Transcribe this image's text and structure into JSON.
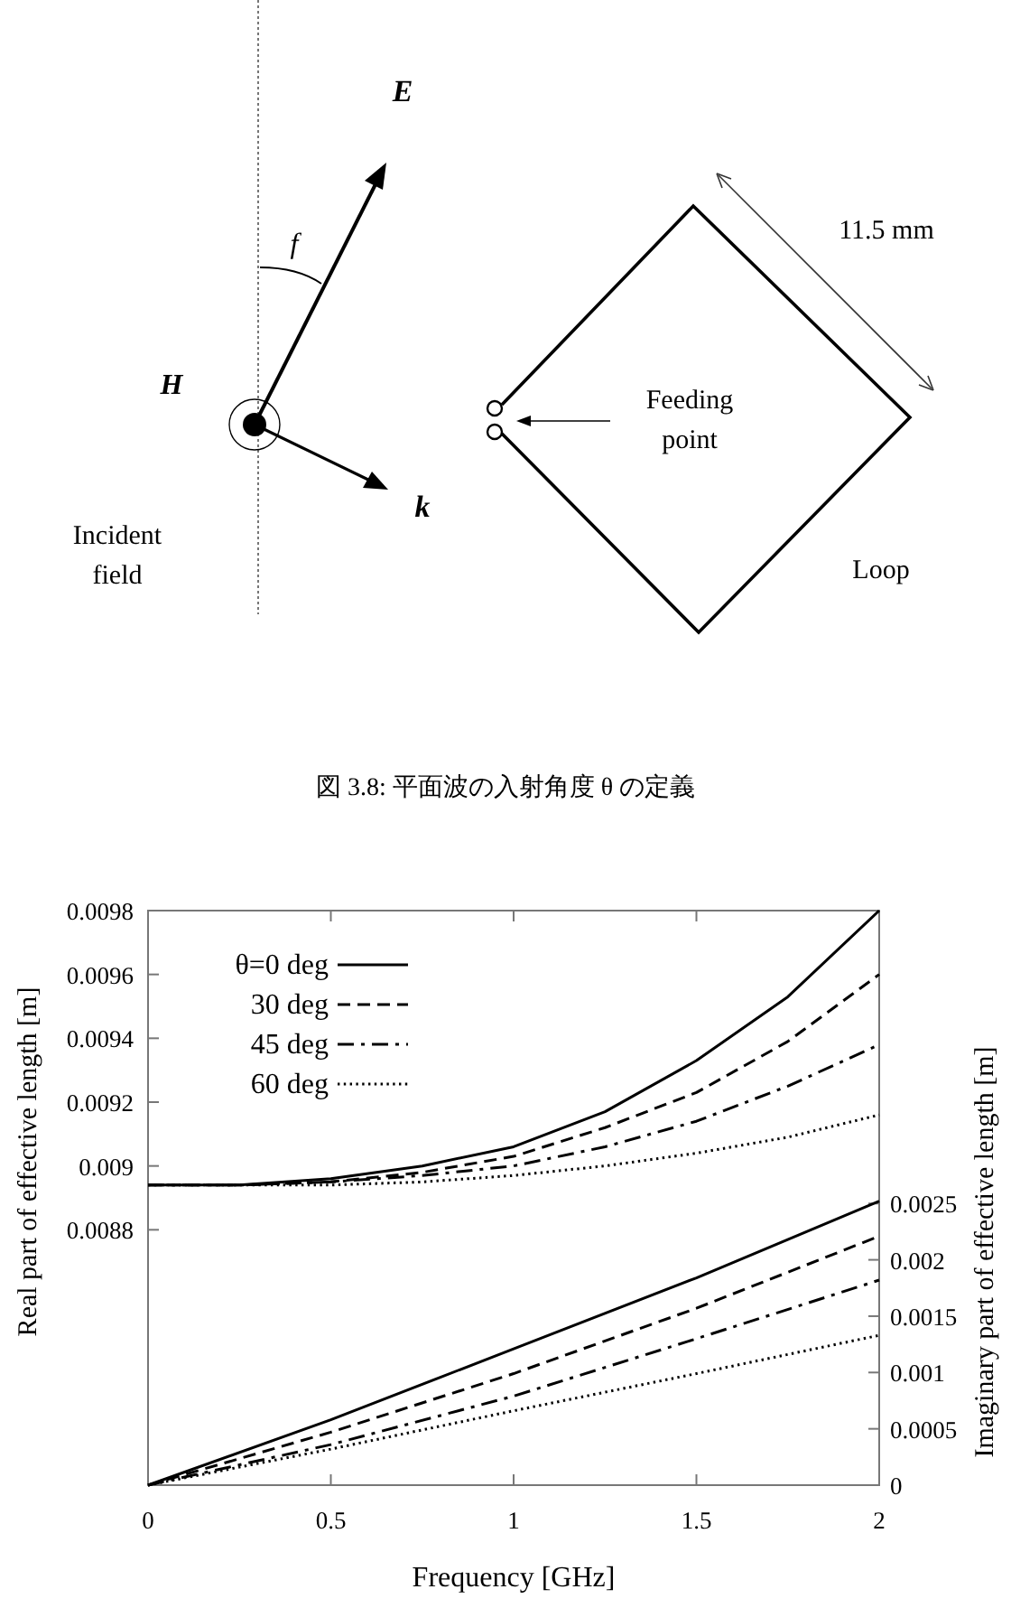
{
  "chart_data": [
    {
      "type": "other",
      "title": "図 3.8: 平面波の入射角度 θ の定義",
      "annotations": [
        "E",
        "f",
        "H",
        "k",
        "Incident field",
        "Feeding point",
        "11.5 mm",
        "Loop"
      ]
    },
    {
      "type": "line",
      "xlabel": "Frequency [GHz]",
      "ylabel": "Real part of effective length [m]",
      "y2label": "Imaginary part of effective length [m]",
      "x": [
        0,
        0.25,
        0.5,
        0.75,
        1,
        1.25,
        1.5,
        1.75,
        2
      ],
      "xlim": [
        0,
        2
      ],
      "xticks": [
        0,
        0.5,
        1,
        1.5,
        2
      ],
      "ylim": [
        0.008,
        0.0098
      ],
      "yticks": [
        0.0088,
        0.009,
        0.0092,
        0.0094,
        0.0096,
        0.0098
      ],
      "y2lim": [
        0,
        0.0051
      ],
      "y2ticks": [
        0,
        0.0005,
        0.001,
        0.0015,
        0.002,
        0.0025
      ],
      "grid": false,
      "legend": "top left",
      "series": [
        {
          "name": "θ=0  deg",
          "color": "#000000",
          "line_style": "solid",
          "values": [
            0.00894,
            0.00894,
            0.00896,
            0.009,
            0.00906,
            0.00917,
            0.00933,
            0.00953,
            0.0098
          ]
        },
        {
          "name": "30 deg",
          "color": "#000000",
          "line_style": "dashed",
          "values": [
            0.00894,
            0.00894,
            0.00895,
            0.00898,
            0.00903,
            0.00912,
            0.00923,
            0.00939,
            0.0096
          ]
        },
        {
          "name": "45 deg",
          "color": "#000000",
          "line_style": "dashdot",
          "values": [
            0.00894,
            0.00894,
            0.00895,
            0.00897,
            0.009,
            0.00906,
            0.00914,
            0.00925,
            0.00938
          ]
        },
        {
          "name": "60 deg",
          "color": "#000000",
          "line_style": "dotted",
          "values": [
            0.00894,
            0.00894,
            0.00894,
            0.00895,
            0.00897,
            0.009,
            0.00904,
            0.00909,
            0.00916
          ]
        },
        {
          "axis": "y2",
          "color": "#000000",
          "line_style": "solid",
          "x": [
            0,
            0.5,
            1,
            1.5,
            2
          ],
          "values": [
            0,
            0.00058,
            0.00121,
            0.00184,
            0.00252
          ]
        },
        {
          "axis": "y2",
          "color": "#000000",
          "line_style": "dashed",
          "x": [
            0,
            0.5,
            1,
            1.5,
            2
          ],
          "values": [
            0,
            0.00047,
            0.00099,
            0.00157,
            0.00221
          ]
        },
        {
          "axis": "y2",
          "color": "#000000",
          "line_style": "dashdot",
          "x": [
            0,
            0.5,
            1,
            1.5,
            2
          ],
          "values": [
            0,
            0.00036,
            0.00079,
            0.0013,
            0.00182
          ]
        },
        {
          "axis": "y2",
          "color": "#000000",
          "line_style": "dotted",
          "x": [
            0,
            0.5,
            1,
            1.5,
            2
          ],
          "values": [
            0,
            0.00032,
            0.00066,
            0.00099,
            0.00133
          ]
        }
      ]
    }
  ]
}
